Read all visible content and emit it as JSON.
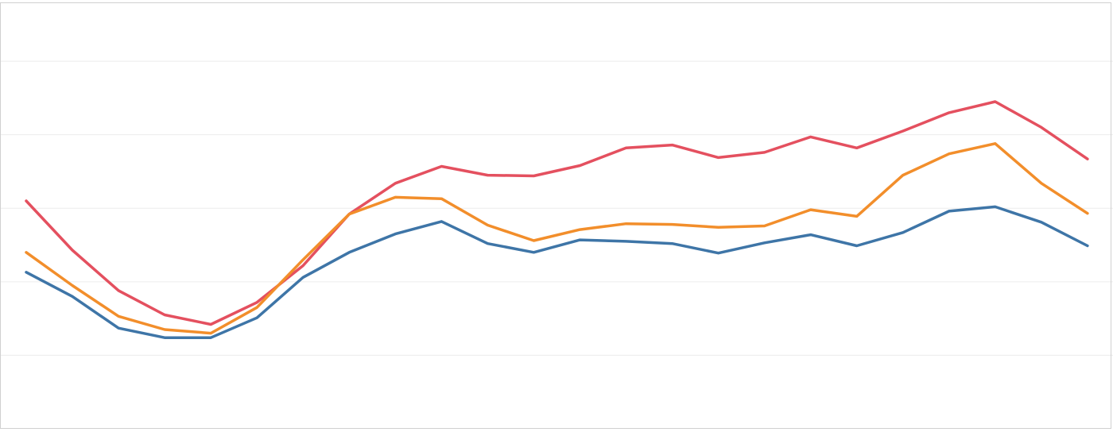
{
  "chart_data": {
    "type": "line",
    "title": "",
    "xlabel": "",
    "ylabel": "",
    "grid": true,
    "ylim": [
      0,
      5.8
    ],
    "gridlines": [
      1,
      2,
      3,
      4,
      5
    ],
    "x": [
      0,
      1,
      2,
      3,
      4,
      5,
      6,
      7,
      8,
      9,
      10,
      11,
      12,
      13,
      14,
      15,
      16,
      17,
      18,
      19,
      20,
      21,
      22,
      23
    ],
    "series": [
      {
        "color": "#e4505f",
        "values": [
          3.1,
          2.43,
          1.88,
          1.55,
          1.42,
          1.72,
          2.22,
          2.92,
          3.34,
          3.57,
          3.45,
          3.44,
          3.58,
          3.82,
          3.86,
          3.69,
          3.76,
          3.97,
          3.82,
          4.05,
          4.3,
          4.45,
          4.1,
          3.67
        ]
      },
      {
        "color": "#f28e2b",
        "values": [
          2.4,
          1.95,
          1.53,
          1.35,
          1.3,
          1.65,
          2.3,
          2.92,
          3.15,
          3.13,
          2.77,
          2.56,
          2.71,
          2.79,
          2.78,
          2.74,
          2.76,
          2.98,
          2.89,
          3.45,
          3.74,
          3.88,
          3.34,
          2.93
        ]
      },
      {
        "color": "#3e75a7",
        "values": [
          2.13,
          1.8,
          1.37,
          1.24,
          1.24,
          1.51,
          2.06,
          2.4,
          2.65,
          2.82,
          2.52,
          2.4,
          2.57,
          2.55,
          2.52,
          2.39,
          2.53,
          2.64,
          2.49,
          2.67,
          2.96,
          3.02,
          2.81,
          2.49
        ]
      }
    ]
  }
}
